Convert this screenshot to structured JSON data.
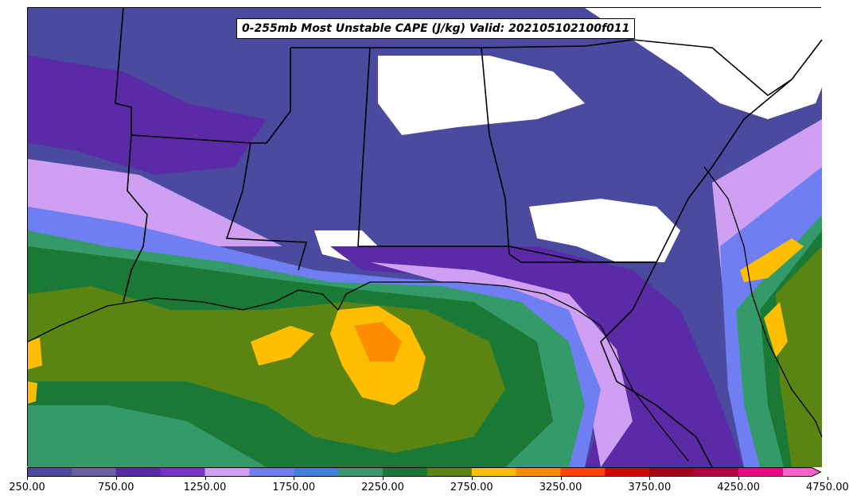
{
  "title": "0-255mb Most Unstable CAPE (J/kg) Valid: 202105102100f011",
  "colorbar": {
    "colors": [
      "#4a4a9f",
      "#6a5fa0",
      "#5b2aa6",
      "#7a33c9",
      "#cf9ff4",
      "#6f7ff2",
      "#3f7fd8",
      "#359a6a",
      "#1a7a35",
      "#5b8512",
      "#ffbf00",
      "#ff8c00",
      "#ff4500",
      "#d70000",
      "#a3001e",
      "#b30042",
      "#e60b84",
      "#ff63c8"
    ],
    "ticks": [
      "250.00",
      "750.00",
      "1250.00",
      "1750.00",
      "2250.00",
      "2750.00",
      "3250.00",
      "3750.00",
      "4250.00",
      "4750.00"
    ]
  },
  "palette": {
    "no_data": "#ffffff",
    "borders": "#000000"
  }
}
